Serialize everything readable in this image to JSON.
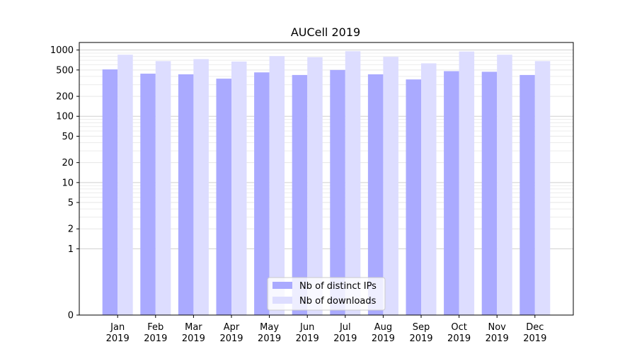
{
  "chart_data": {
    "type": "bar",
    "title": "AUCell 2019",
    "xlabel": "",
    "ylabel": "",
    "yscale": "symlog",
    "ylim": [
      0,
      1300
    ],
    "yticks": [
      0,
      1,
      2,
      5,
      10,
      20,
      50,
      100,
      200,
      500,
      1000
    ],
    "ytick_labels": [
      "0",
      "1",
      "2",
      "5",
      "10",
      "20",
      "50",
      "100",
      "200",
      "500",
      "1000"
    ],
    "categories": [
      [
        "Jan",
        "2019"
      ],
      [
        "Feb",
        "2019"
      ],
      [
        "Mar",
        "2019"
      ],
      [
        "Apr",
        "2019"
      ],
      [
        "May",
        "2019"
      ],
      [
        "Jun",
        "2019"
      ],
      [
        "Jul",
        "2019"
      ],
      [
        "Aug",
        "2019"
      ],
      [
        "Sep",
        "2019"
      ],
      [
        "Oct",
        "2019"
      ],
      [
        "Nov",
        "2019"
      ],
      [
        "Dec",
        "2019"
      ]
    ],
    "series": [
      {
        "name": "Nb of distinct IPs",
        "color": "#aaaaff",
        "values": [
          510,
          440,
          430,
          370,
          460,
          420,
          500,
          430,
          360,
          480,
          470,
          420
        ]
      },
      {
        "name": "Nb of downloads",
        "color": "#ddddff",
        "values": [
          850,
          680,
          730,
          670,
          810,
          780,
          960,
          790,
          630,
          950,
          850,
          680
        ]
      }
    ],
    "legend_position": "bottom-center",
    "grid": true
  }
}
